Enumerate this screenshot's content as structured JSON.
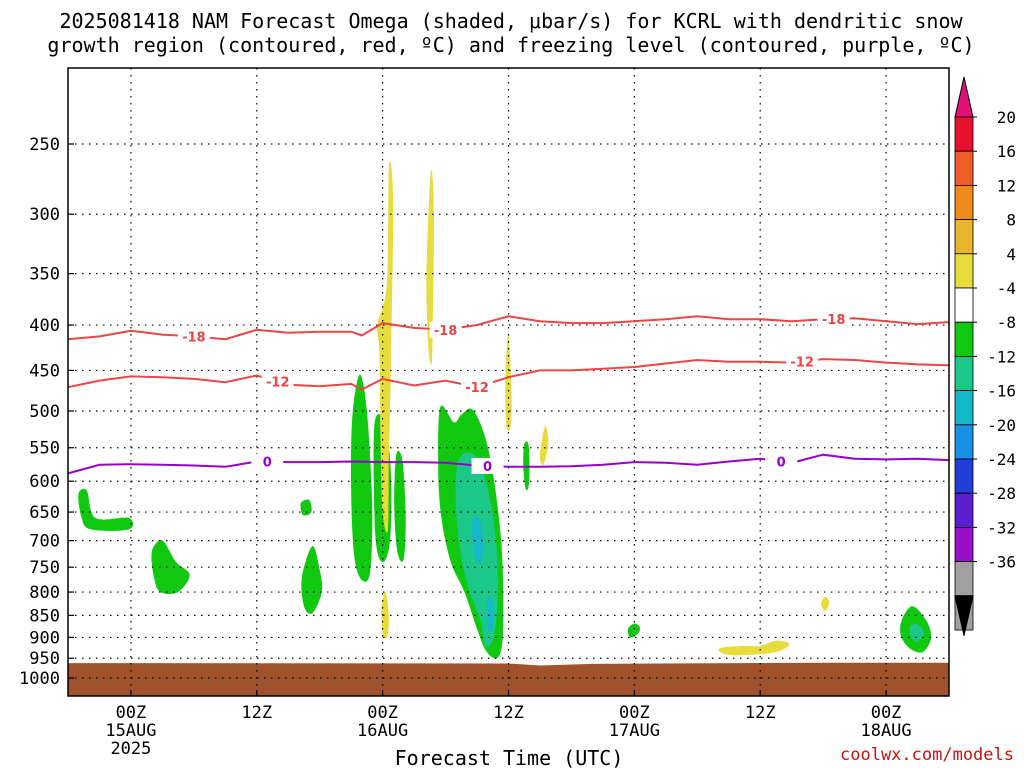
{
  "title_line1": "2025081418 NAM Forecast Omega (shaded, μbar/s) for KCRL with dendritic snow",
  "title_line2": "growth region (contoured, red, ºC) and freezing level (contoured, purple, ºC)",
  "credit": "coolwx.com/models",
  "chart_data": {
    "type": "heatmap",
    "title": "2025081418 NAM Forecast Omega (shaded, μbar/s) for KCRL with dendritic snow growth region (contoured, red, ºC) and freezing level (contoured, purple, ºC)",
    "xlabel": "Forecast Time (UTC)",
    "ylabel": "",
    "x_unit": "hours from 2025-08-14 18Z",
    "xlim": [
      0,
      84
    ],
    "y_scale": "log-pressure",
    "ylim_hPa": [
      1030,
      200
    ],
    "y_ticks": [
      250,
      300,
      350,
      400,
      450,
      500,
      550,
      600,
      650,
      700,
      750,
      800,
      850,
      900,
      950,
      1000
    ],
    "x_ticks": [
      {
        "hour": 6,
        "label": "00Z",
        "sub1": "15AUG",
        "sub2": "2025"
      },
      {
        "hour": 18,
        "label": "12Z",
        "sub1": "",
        "sub2": ""
      },
      {
        "hour": 30,
        "label": "00Z",
        "sub1": "16AUG",
        "sub2": ""
      },
      {
        "hour": 42,
        "label": "12Z",
        "sub1": "",
        "sub2": ""
      },
      {
        "hour": 54,
        "label": "00Z",
        "sub1": "17AUG",
        "sub2": ""
      },
      {
        "hour": 66,
        "label": "12Z",
        "sub1": "",
        "sub2": ""
      },
      {
        "hour": 78,
        "label": "00Z",
        "sub1": "18AUG",
        "sub2": ""
      }
    ],
    "grid": true,
    "colorbar": {
      "levels": [
        "20",
        "16",
        "12",
        "8",
        "4",
        "-4",
        "-8",
        "-12",
        "-16",
        "-20",
        "-24",
        "-28",
        "-32",
        "-36"
      ],
      "colors": [
        "#e8112d",
        "#f05c25",
        "#f08a1a",
        "#e8b42b",
        "#e8dc3c",
        "#ffffff",
        "#11c811",
        "#1cc889",
        "#14b8c8",
        "#1890e8",
        "#1f3fd8",
        "#5a1fcf",
        "#9a10c8",
        "#a0a0a0"
      ],
      "top_arrow_color": "#e0127a",
      "bottom_arrow_color": "#000000"
    },
    "series": [
      {
        "name": "-18",
        "color": "#ee4444",
        "x": [
          0,
          3,
          6,
          9,
          12,
          15,
          18,
          21,
          24,
          27,
          28,
          30,
          33,
          36,
          39,
          42,
          45,
          48,
          51,
          54,
          57,
          60,
          63,
          66,
          69,
          72,
          75,
          78,
          81,
          84
        ],
        "y": [
          415,
          412,
          406,
          410,
          412,
          415,
          405,
          408,
          407,
          407,
          411,
          398,
          403,
          405,
          400,
          391,
          396,
          398,
          398,
          396,
          394,
          391,
          394,
          394,
          396,
          394,
          393,
          396,
          399,
          397
        ]
      },
      {
        "name": "-12",
        "color": "#ee4444",
        "x": [
          0,
          3,
          6,
          9,
          12,
          15,
          18,
          21,
          24,
          27,
          28,
          30,
          33,
          36,
          39,
          42,
          45,
          48,
          51,
          54,
          57,
          60,
          63,
          66,
          69,
          72,
          75,
          78,
          81,
          84
        ],
        "y": [
          470,
          462,
          457,
          458,
          460,
          464,
          456,
          467,
          469,
          466,
          473,
          460,
          468,
          462,
          470,
          458,
          450,
          450,
          448,
          446,
          442,
          438,
          440,
          440,
          441,
          437,
          438,
          441,
          443,
          444
        ]
      },
      {
        "name": "0",
        "color": "#9900cc",
        "x": [
          0,
          3,
          6,
          9,
          12,
          15,
          18,
          21,
          24,
          27,
          30,
          33,
          36,
          39,
          42,
          45,
          48,
          51,
          54,
          57,
          60,
          63,
          66,
          69,
          72,
          75,
          78,
          81,
          84
        ],
        "y": [
          588,
          575,
          574,
          575,
          576,
          578,
          570,
          571,
          571,
          570,
          571,
          571,
          572,
          576,
          578,
          578,
          577,
          575,
          571,
          572,
          575,
          570,
          566,
          572,
          560,
          566,
          567,
          566,
          568
        ]
      }
    ],
    "omega_regions": [
      {
        "level": "-4",
        "points": [
          [
            27.1,
            510
          ],
          [
            27.8,
            455
          ],
          [
            28.5,
            500
          ],
          [
            29.0,
            640
          ],
          [
            28.8,
            760
          ],
          [
            28.0,
            775
          ],
          [
            27.3,
            730
          ],
          [
            27.0,
            620
          ]
        ]
      },
      {
        "level": "-4",
        "points": [
          [
            29.2,
            520
          ],
          [
            30.2,
            515
          ],
          [
            30.8,
            590
          ],
          [
            30.7,
            700
          ],
          [
            30.0,
            740
          ],
          [
            29.3,
            690
          ]
        ]
      },
      {
        "level": "-4",
        "points": [
          [
            31.3,
            560
          ],
          [
            31.9,
            570
          ],
          [
            32.2,
            660
          ],
          [
            32.0,
            735
          ],
          [
            31.4,
            720
          ],
          [
            31.1,
            640
          ]
        ]
      },
      {
        "level": "-4",
        "points": [
          [
            35.5,
            495
          ],
          [
            36.8,
            515
          ],
          [
            37.5,
            505
          ],
          [
            38.7,
            500
          ],
          [
            40.2,
            560
          ],
          [
            41.3,
            700
          ],
          [
            41.5,
            850
          ],
          [
            41.3,
            930
          ],
          [
            40.7,
            950
          ],
          [
            39.8,
            930
          ],
          [
            39.0,
            880
          ],
          [
            37.8,
            800
          ],
          [
            36.5,
            740
          ],
          [
            35.6,
            660
          ],
          [
            35.3,
            580
          ]
        ]
      },
      {
        "level": "-8",
        "points": [
          [
            37.2,
            570
          ],
          [
            38.7,
            560
          ],
          [
            40.0,
            610
          ],
          [
            40.8,
            700
          ],
          [
            41.0,
            800
          ],
          [
            40.6,
            900
          ],
          [
            39.8,
            920
          ],
          [
            39.3,
            860
          ],
          [
            38.3,
            800
          ],
          [
            37.5,
            730
          ],
          [
            37.0,
            650
          ]
        ]
      },
      {
        "level": "-12",
        "points": [
          [
            38.5,
            670
          ],
          [
            39.2,
            660
          ],
          [
            39.6,
            700
          ],
          [
            39.4,
            740
          ],
          [
            38.8,
            730
          ]
        ]
      },
      {
        "level": "-12",
        "points": [
          [
            40.0,
            810
          ],
          [
            40.6,
            830
          ],
          [
            40.5,
            880
          ],
          [
            40.0,
            880
          ]
        ]
      },
      {
        "level": "-4",
        "points": [
          [
            1.0,
            620
          ],
          [
            1.8,
            615
          ],
          [
            2.6,
            660
          ],
          [
            5.8,
            660
          ],
          [
            5.8,
            680
          ],
          [
            2.2,
            680
          ],
          [
            1.3,
            660
          ]
        ]
      },
      {
        "level": "-4",
        "points": [
          [
            8.0,
            720
          ],
          [
            9.0,
            700
          ],
          [
            10.3,
            740
          ],
          [
            11.6,
            765
          ],
          [
            10.5,
            800
          ],
          [
            8.8,
            800
          ],
          [
            8.2,
            770
          ]
        ]
      },
      {
        "level": "-4",
        "points": [
          [
            22.2,
            635
          ],
          [
            23.0,
            630
          ],
          [
            23.2,
            650
          ],
          [
            22.4,
            655
          ]
        ]
      },
      {
        "level": "-4",
        "points": [
          [
            22.3,
            770
          ],
          [
            23.3,
            710
          ],
          [
            24.0,
            755
          ],
          [
            24.2,
            800
          ],
          [
            23.3,
            845
          ],
          [
            22.5,
            830
          ]
        ]
      },
      {
        "level": "-4",
        "points": [
          [
            43.5,
            545
          ],
          [
            43.9,
            545
          ],
          [
            44.0,
            580
          ],
          [
            43.9,
            610
          ],
          [
            43.6,
            610
          ],
          [
            43.4,
            575
          ]
        ]
      },
      {
        "level": "-4",
        "points": [
          [
            53.4,
            880
          ],
          [
            54.0,
            868
          ],
          [
            54.5,
            875
          ],
          [
            54.4,
            890
          ],
          [
            53.6,
            900
          ]
        ]
      },
      {
        "level": "-4",
        "points": [
          [
            79.5,
            860
          ],
          [
            80.5,
            830
          ],
          [
            81.8,
            860
          ],
          [
            82.3,
            900
          ],
          [
            81.5,
            935
          ],
          [
            80.2,
            925
          ],
          [
            79.4,
            895
          ]
        ]
      },
      {
        "level": "-8",
        "points": [
          [
            80.3,
            875
          ],
          [
            81.0,
            870
          ],
          [
            81.6,
            890
          ],
          [
            81.0,
            910
          ],
          [
            80.4,
            900
          ]
        ]
      },
      {
        "level": "4",
        "points": [
          [
            29.5,
            400
          ],
          [
            30.4,
            360
          ],
          [
            30.6,
            265
          ],
          [
            31.0,
            290
          ],
          [
            30.8,
            440
          ],
          [
            30.6,
            560
          ],
          [
            30.5,
            680
          ],
          [
            30.0,
            650
          ],
          [
            29.8,
            540
          ],
          [
            29.7,
            430
          ]
        ]
      },
      {
        "level": "4",
        "points": [
          [
            34.2,
            340
          ],
          [
            34.6,
            268
          ],
          [
            34.9,
            300
          ],
          [
            34.8,
            380
          ],
          [
            34.7,
            440
          ],
          [
            34.4,
            430
          ],
          [
            34.2,
            380
          ]
        ]
      },
      {
        "level": "4",
        "points": [
          [
            41.7,
            460
          ],
          [
            42.0,
            410
          ],
          [
            42.3,
            480
          ],
          [
            42.2,
            520
          ],
          [
            41.8,
            520
          ]
        ]
      },
      {
        "level": "4",
        "points": [
          [
            45.0,
            560
          ],
          [
            45.5,
            520
          ],
          [
            45.8,
            545
          ],
          [
            45.3,
            575
          ]
        ]
      },
      {
        "level": "4",
        "points": [
          [
            29.9,
            830
          ],
          [
            30.3,
            800
          ],
          [
            30.6,
            860
          ],
          [
            30.4,
            900
          ],
          [
            30.0,
            890
          ]
        ]
      },
      {
        "level": "4",
        "points": [
          [
            62.2,
            925
          ],
          [
            64.5,
            920
          ],
          [
            66.0,
            920
          ],
          [
            67.5,
            908
          ],
          [
            68.8,
            915
          ],
          [
            67.5,
            935
          ],
          [
            64.0,
            943
          ],
          [
            62.4,
            938
          ]
        ]
      },
      {
        "level": "4",
        "points": [
          [
            71.8,
            825
          ],
          [
            72.2,
            810
          ],
          [
            72.6,
            822
          ],
          [
            72.2,
            840
          ]
        ]
      }
    ],
    "ground": {
      "color": "#a0522d",
      "top_hPa": [
        [
          0,
          962
        ],
        [
          42,
          963
        ],
        [
          45,
          968
        ],
        [
          50,
          964
        ],
        [
          72,
          961
        ],
        [
          84,
          961
        ]
      ]
    }
  }
}
